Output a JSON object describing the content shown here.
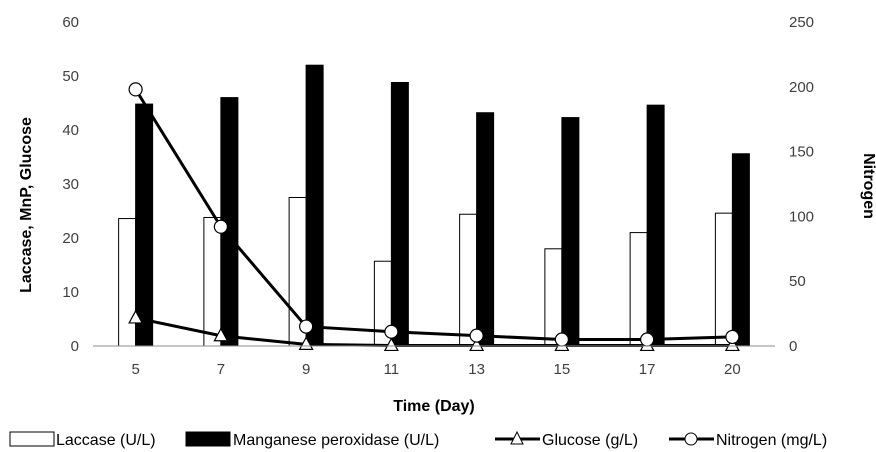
{
  "chart_data": {
    "type": "bar",
    "title": "",
    "xlabel": "Time (Day)",
    "ylabel": "Laccase, MnP, Glucose",
    "y2label": "Nitrogen",
    "categories": [
      "5",
      "7",
      "9",
      "11",
      "13",
      "15",
      "17",
      "20"
    ],
    "ylim": [
      0,
      60
    ],
    "yticks": [
      0,
      10,
      20,
      30,
      40,
      50,
      60
    ],
    "y2lim": [
      0,
      250
    ],
    "y2ticks": [
      0,
      50,
      100,
      150,
      200,
      250
    ],
    "grid": false,
    "legend_position": "bottom",
    "series": [
      {
        "name": "Laccase (U/L)",
        "kind": "bar",
        "axis": "left",
        "fill": "#ffffff",
        "stroke": "#000000",
        "values": [
          23.6,
          23.8,
          27.5,
          15.7,
          24.4,
          18.0,
          21.0,
          24.6
        ]
      },
      {
        "name": "Manganese peroxidase (U/L)",
        "kind": "bar",
        "axis": "left",
        "fill": "#000000",
        "stroke": "#000000",
        "values": [
          44.8,
          46.0,
          52.0,
          48.8,
          43.2,
          42.3,
          44.6,
          35.6
        ]
      },
      {
        "name": "Glucose (g/L)",
        "kind": "line",
        "marker": "triangle",
        "axis": "left",
        "stroke": "#000000",
        "values": [
          5.2,
          1.9,
          0.3,
          0.1,
          0.1,
          0.1,
          0.1,
          0.1
        ]
      },
      {
        "name": "Nitrogen (mg/L)",
        "kind": "line",
        "marker": "circle",
        "axis": "right",
        "stroke": "#000000",
        "values": [
          198,
          92,
          15,
          11,
          8,
          5,
          5,
          7
        ]
      }
    ]
  }
}
